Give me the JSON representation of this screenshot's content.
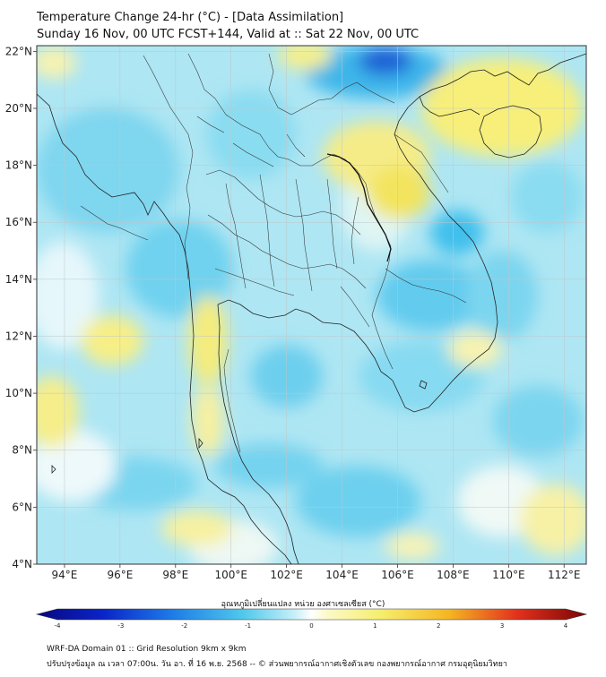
{
  "header": {
    "title": "Temperature Change 24-hr (°C) - [Data Assimilation]",
    "subtitle": "Sunday 16 Nov, 00 UTC FCST+144, Valid at :: Sat 22 Nov, 00 UTC"
  },
  "axes": {
    "lon_labels": [
      "94°E",
      "96°E",
      "98°E",
      "100°E",
      "102°E",
      "104°E",
      "106°E",
      "108°E",
      "110°E",
      "112°E"
    ],
    "lat_labels": [
      "22°N",
      "20°N",
      "18°N",
      "16°N",
      "14°N",
      "12°N",
      "10°N",
      "8°N",
      "6°N",
      "4°N"
    ],
    "lon_values": [
      94,
      96,
      98,
      100,
      102,
      104,
      106,
      108,
      110,
      112
    ],
    "lat_values": [
      22,
      20,
      18,
      16,
      14,
      12,
      10,
      8,
      6,
      4
    ]
  },
  "colorbar": {
    "label": "อุณหภูมิเปลี่ยนแปลง หน่วย องศาเซลเซียส (°C)",
    "ticks": [
      "-4",
      "-3",
      "-2",
      "-1",
      "0",
      "1",
      "2",
      "3",
      "4"
    ],
    "tick_values": [
      -4,
      -3,
      -2,
      -1,
      0,
      1,
      2,
      3,
      4
    ],
    "range": [
      -4,
      4
    ]
  },
  "footer": {
    "line1": "WRF-DA Domain 01 :: Grid Resolution 9km x 9km",
    "line2": "ปรับปรุงข้อมูล ณ เวลา 07:00น. วัน อา. ที่ 16 พ.ย. 2568 -- © ส่วนพยากรณ์อากาศเชิงตัวเลข กองพยากรณ์อากาศ กรมอุตุนิยมวิทยา"
  },
  "colors": {
    "light_blue": "#a8e6f4",
    "blue": "#4fc8ec",
    "deep_blue": "#0a24c8",
    "yellow": "#f6f08a",
    "pale": "#e6f7fb",
    "border": "#222222",
    "grid": "#bfc7cc"
  }
}
